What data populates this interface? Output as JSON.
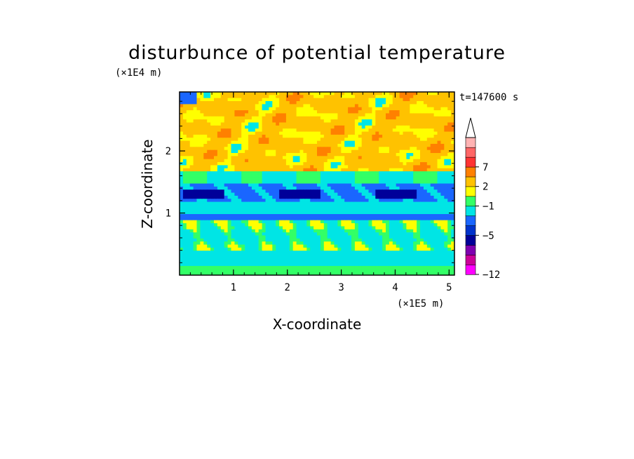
{
  "chart_data": {
    "type": "heatmap",
    "title": "disturbunce of potential temperature",
    "xlabel": "X-coordinate",
    "ylabel": "Z-coordinate",
    "x_unit_label": "(×1E5 m)",
    "y_unit_label": "(×1E4 m)",
    "time_label": "t=147600 s",
    "xlim": [
      0,
      5.1
    ],
    "ylim": [
      0,
      2.95
    ],
    "x_ticks": [
      "1",
      "2",
      "3",
      "4",
      "5"
    ],
    "y_ticks": [
      "1",
      "2"
    ],
    "colorbar": {
      "tick_labels": [
        "7",
        "2",
        "−1",
        "−5",
        "−12"
      ],
      "extend": "max",
      "colors": [
        "#ff00ff",
        "#cc0099",
        "#7f00b0",
        "#000099",
        "#0033cc",
        "#1a66ff",
        "#00e5e5",
        "#33ff66",
        "#ffff00",
        "#ffc200",
        "#ff8000",
        "#ff3333",
        "#ff6666",
        "#ffb3b3"
      ]
    }
  }
}
